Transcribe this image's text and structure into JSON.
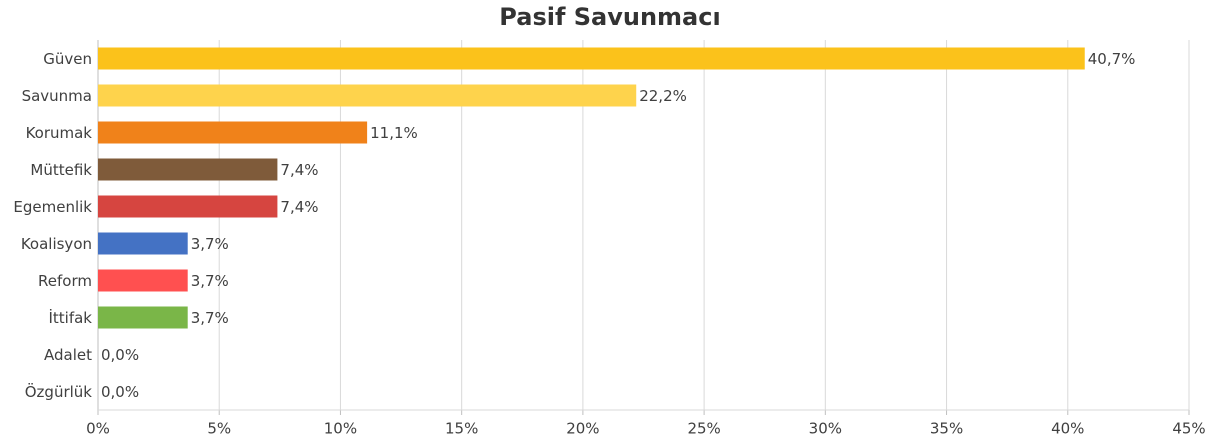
{
  "chart_data": {
    "type": "bar",
    "title": "Pasif Savunmacı",
    "categories": [
      "Güven",
      "Savunma",
      "Korumak",
      "Müttefik",
      "Egemenlik",
      "Koalisyon",
      "Reform",
      "İttifak",
      "Adalet",
      "Özgürlük"
    ],
    "values": [
      40.7,
      22.2,
      11.1,
      7.4,
      7.4,
      3.7,
      3.7,
      3.7,
      0,
      0
    ],
    "value_labels": [
      "40,7%",
      "22,2%",
      "11,1%",
      "7,4%",
      "7,4%",
      "3,7%",
      "3,7%",
      "3,7%",
      "0,0%",
      "0,0%"
    ],
    "colors": [
      "#fbc21b",
      "#fed34c",
      "#f0821a",
      "#7f5b3a",
      "#d64540",
      "#4472c4",
      "#ff5050",
      "#7ab648",
      null,
      null
    ],
    "xlim": [
      0,
      45
    ],
    "xticks": [
      {
        "value": 0,
        "label": "0%"
      },
      {
        "value": 5,
        "label": "5%"
      },
      {
        "value": 10,
        "label": "10%"
      },
      {
        "value": 15,
        "label": "15%"
      },
      {
        "value": 20,
        "label": "20%"
      },
      {
        "value": 25,
        "label": "25%"
      },
      {
        "value": 30,
        "label": "30%"
      },
      {
        "value": 35,
        "label": "35%"
      },
      {
        "value": 40,
        "label": "40%"
      },
      {
        "value": 45,
        "label": "45%"
      }
    ],
    "grid": true
  }
}
